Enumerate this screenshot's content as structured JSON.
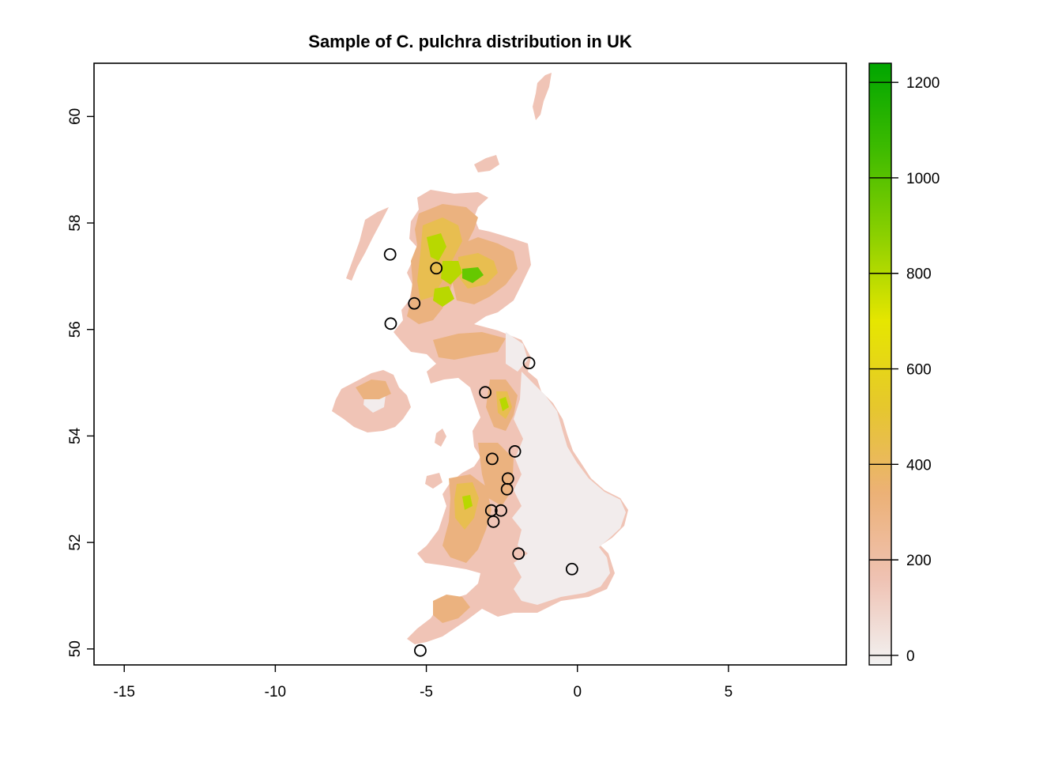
{
  "title": "Sample of C. pulchra distribution in UK",
  "x_axis": {
    "range": [
      -16,
      8.9
    ],
    "ticks": [
      -15,
      -10,
      -5,
      0,
      5
    ],
    "tick_labels": [
      "-15",
      "-10",
      "-5",
      "0",
      "5"
    ]
  },
  "y_axis": {
    "range": [
      49.7,
      61
    ],
    "ticks": [
      50,
      52,
      54,
      56,
      58,
      60
    ],
    "tick_labels": [
      "50",
      "52",
      "54",
      "56",
      "58",
      "60"
    ]
  },
  "colorbar": {
    "range": [
      -20,
      1240
    ],
    "ticks": [
      0,
      200,
      400,
      600,
      800,
      1000,
      1200
    ],
    "tick_labels": [
      "0",
      "200",
      "400",
      "600",
      "800",
      "1000",
      "1200"
    ],
    "colors": [
      "#f2f2f2",
      "#efc2b3",
      "#ecb176",
      "#e6c72d",
      "#e6e600",
      "#8bd000",
      "#3ebb00",
      "#00a600"
    ]
  },
  "map_colors": {
    "lowland": "#f2ecec",
    "low_hills": "#f0c8b8",
    "hills": "#ebb27f",
    "uplands": "#e8be50",
    "highlands": "#b8d800",
    "peaks": "#66c800"
  },
  "points": [
    {
      "lon": -6.2,
      "lat": 57.41
    },
    {
      "lon": -4.67,
      "lat": 57.15
    },
    {
      "lon": -5.4,
      "lat": 56.49
    },
    {
      "lon": -6.18,
      "lat": 56.11
    },
    {
      "lon": -1.6,
      "lat": 55.37
    },
    {
      "lon": -3.05,
      "lat": 54.82
    },
    {
      "lon": -2.07,
      "lat": 53.71
    },
    {
      "lon": -2.82,
      "lat": 53.57
    },
    {
      "lon": -2.3,
      "lat": 53.2
    },
    {
      "lon": -2.33,
      "lat": 53.0
    },
    {
      "lon": -2.85,
      "lat": 52.6
    },
    {
      "lon": -2.53,
      "lat": 52.6
    },
    {
      "lon": -2.78,
      "lat": 52.39
    },
    {
      "lon": -1.95,
      "lat": 51.79
    },
    {
      "lon": -0.18,
      "lat": 51.5
    },
    {
      "lon": -5.2,
      "lat": 49.97
    }
  ]
}
